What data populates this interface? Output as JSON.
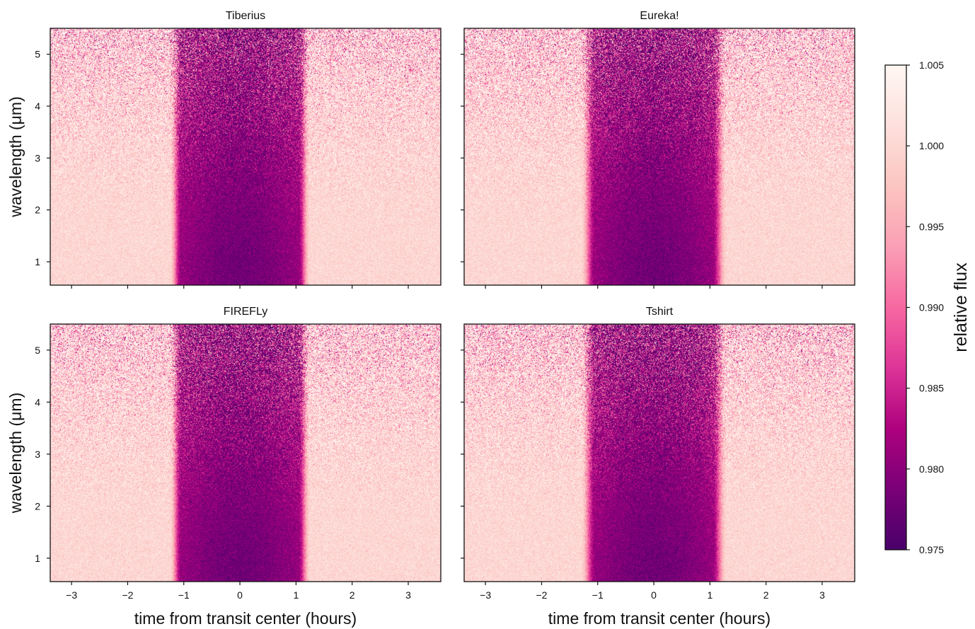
{
  "chart_data": [
    {
      "type": "heatmap",
      "title": "Tiberius",
      "xlabel": "",
      "ylabel": "wavelength (μm)",
      "xlim": [
        -3.38,
        3.58
      ],
      "ylim": [
        0.55,
        5.5
      ],
      "xticks": [
        -3,
        -2,
        -1,
        0,
        1,
        2,
        3
      ],
      "yticks": [
        1,
        2,
        3,
        4,
        5
      ],
      "show_xticklabels": false,
      "transit": {
        "ingress": [
          -1.25,
          -1.05
        ],
        "egress": [
          1.05,
          1.25
        ],
        "min_flux": 0.978
      },
      "seed": 11
    },
    {
      "type": "heatmap",
      "title": "Eureka!",
      "xlabel": "",
      "ylabel": "",
      "xlim": [
        -3.38,
        3.58
      ],
      "ylim": [
        0.55,
        5.5
      ],
      "xticks": [
        -3,
        -2,
        -1,
        0,
        1,
        2,
        3
      ],
      "yticks": [
        1,
        2,
        3,
        4,
        5
      ],
      "show_xticklabels": false,
      "transit": {
        "ingress": [
          -1.3,
          -1.05
        ],
        "egress": [
          1.05,
          1.3
        ],
        "min_flux": 0.978
      },
      "seed": 23
    },
    {
      "type": "heatmap",
      "title": "FIREFLy",
      "xlabel": "time from transit center (hours)",
      "ylabel": "wavelength (μm)",
      "xlim": [
        -3.38,
        3.58
      ],
      "ylim": [
        0.55,
        5.5
      ],
      "xticks": [
        -3,
        -2,
        -1,
        0,
        1,
        2,
        3
      ],
      "yticks": [
        1,
        2,
        3,
        4,
        5
      ],
      "show_xticklabels": true,
      "transit": {
        "ingress": [
          -1.25,
          -1.05
        ],
        "egress": [
          1.05,
          1.25
        ],
        "min_flux": 0.978
      },
      "seed": 37
    },
    {
      "type": "heatmap",
      "title": "Tshirt",
      "xlabel": "time from transit center (hours)",
      "ylabel": "",
      "xlim": [
        -3.38,
        3.58
      ],
      "ylim": [
        0.55,
        5.5
      ],
      "xticks": [
        -3,
        -2,
        -1,
        0,
        1,
        2,
        3
      ],
      "yticks": [
        1,
        2,
        3,
        4,
        5
      ],
      "show_xticklabels": true,
      "transit": {
        "ingress": [
          -1.3,
          -1.05
        ],
        "egress": [
          1.05,
          1.3
        ],
        "min_flux": 0.978
      },
      "seed": 53
    }
  ],
  "colorbar": {
    "label": "relative flux",
    "vmin": 0.975,
    "vmax": 1.005,
    "ticks": [
      "0.975",
      "0.980",
      "0.985",
      "0.990",
      "0.995",
      "1.000",
      "1.005"
    ],
    "colormap": "RdPu_r",
    "colors": [
      "#49006a",
      "#7a0177",
      "#ae017e",
      "#dd3497",
      "#f768a1",
      "#fa9fb5",
      "#fcc5c0",
      "#fde0dd",
      "#fff7f3"
    ]
  }
}
